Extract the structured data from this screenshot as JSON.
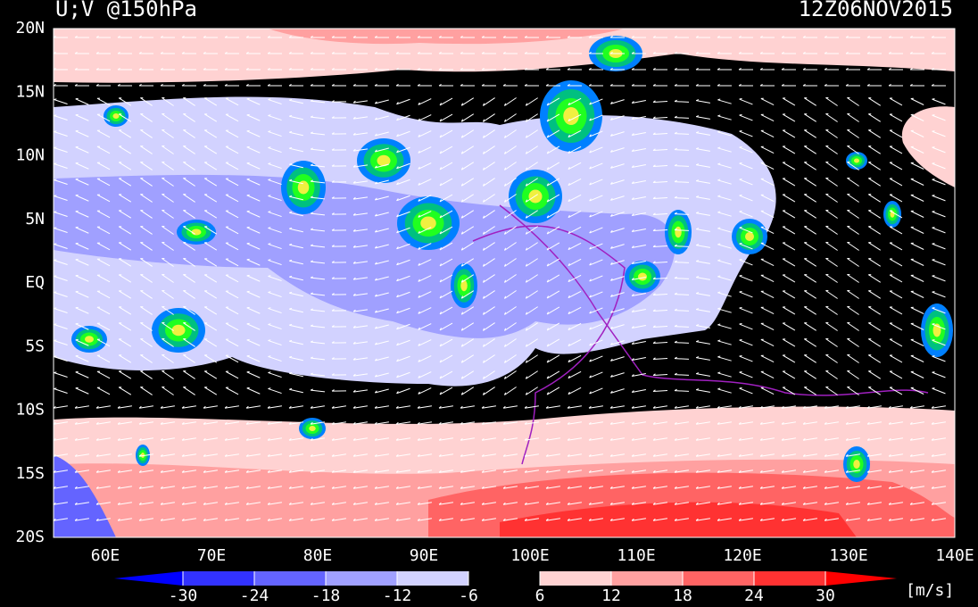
{
  "header": {
    "title": "U;V @150hPa",
    "timestamp": "12Z06NOV2015"
  },
  "map": {
    "lat_labels": [
      "20N",
      "15N",
      "10N",
      "5N",
      "EQ",
      "5S",
      "10S",
      "15S",
      "20S"
    ],
    "lon_labels": [
      "60E",
      "70E",
      "80E",
      "90E",
      "100E",
      "110E",
      "120E",
      "130E",
      "140E"
    ]
  },
  "colorbar": {
    "ticks": [
      -30,
      -24,
      -18,
      -12,
      -6,
      6,
      12,
      18,
      24,
      30
    ],
    "colors": [
      "#0000ff",
      "#3232ff",
      "#6464ff",
      "#a0a0ff",
      "#d2d2ff",
      "#000000",
      "#ffd2d2",
      "#ffa0a0",
      "#ff6464",
      "#ff3232",
      "#ff0000"
    ],
    "unit": "[m/s]"
  }
}
